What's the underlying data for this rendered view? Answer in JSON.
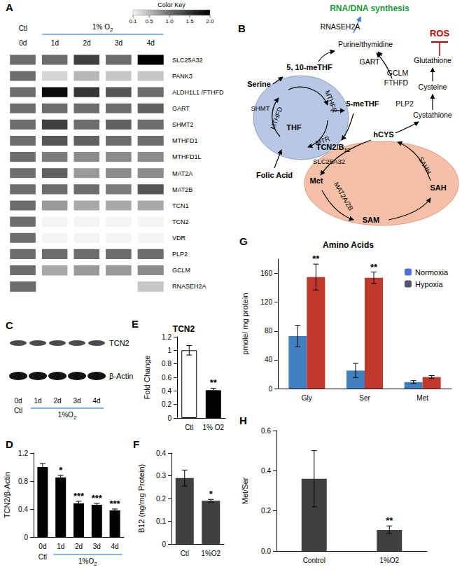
{
  "panel_labels": [
    "A",
    "B",
    "C",
    "D",
    "E",
    "F",
    "G",
    "H"
  ],
  "chart_data": [
    {
      "type": "heatmap",
      "x": [
        "0d",
        "1d",
        "2d",
        "3d",
        "4d"
      ],
      "y": [
        "SLC25A32",
        "PANK3",
        "ALDH1L1 /FTHFD",
        "GART",
        "SHMT2",
        "MTHFD1",
        "MTHFD1L",
        "MAT2A",
        "MAT2B",
        "TCN1",
        "TCN2",
        "VDR",
        "PLP2",
        "GCLM",
        "RNASEH2A"
      ],
      "cells": [
        [
          1.0,
          1.0,
          1.4,
          1.0,
          2.0
        ],
        [
          1.0,
          0.3,
          0.5,
          0.4,
          0.4
        ],
        [
          1.0,
          1.9,
          1.5,
          1.2,
          1.0
        ],
        [
          1.0,
          1.0,
          1.0,
          1.0,
          1.1
        ],
        [
          1.0,
          1.4,
          1.0,
          1.1,
          1.0
        ],
        [
          1.0,
          1.2,
          1.1,
          1.0,
          1.0
        ],
        [
          1.0,
          0.9,
          0.8,
          0.8,
          0.8
        ],
        [
          1.0,
          1.1,
          0.7,
          0.8,
          0.8
        ],
        [
          1.0,
          1.0,
          1.0,
          0.9,
          1.2
        ],
        [
          1.0,
          0.7,
          0.6,
          0.6,
          0.6
        ],
        [
          1.0,
          0.1,
          0.1,
          0.1,
          0.1
        ],
        [
          1.0,
          0.1,
          0.1,
          0.1,
          0.1
        ],
        [
          1.0,
          1.0,
          1.0,
          1.0,
          1.0
        ],
        [
          1.0,
          0.6,
          0.7,
          0.7,
          0.8
        ],
        [
          1.0,
          null,
          null,
          null,
          0.4
        ]
      ],
      "colorbar": {
        "title": "Color Key",
        "range": [
          0.1,
          2.0
        ],
        "ticks": [
          0.1,
          0.5,
          {
            "value": 1,
            "label": "1.0"
          },
          1.5,
          {
            "value": 2,
            "label": "2.0"
          }
        ]
      },
      "annotations": [
        "Ctl",
        "1% O2"
      ]
    },
    {
      "type": "bar",
      "ylabel": "TCN2/β-Actin",
      "categories": [
        "0d",
        "1d",
        "2d",
        "3d",
        "4d"
      ],
      "values": [
        1.0,
        0.85,
        0.48,
        0.46,
        0.38
      ],
      "errors": [
        0.05,
        0.03,
        0.03,
        0.02,
        0.02
      ],
      "significance": [
        null,
        "*",
        "***",
        "***",
        "***"
      ],
      "color": "#000000",
      "ylim": [
        0,
        1.2
      ],
      "yticks": [
        0,
        0.4,
        0.8,
        1.2
      ],
      "grid": false,
      "annotations": [
        "Ctl",
        "1%O2"
      ]
    },
    {
      "type": "bar",
      "title": "TCN2",
      "ylabel": "Fold Change",
      "categories": [
        "Ctl",
        "1% O2"
      ],
      "values": [
        1.0,
        0.41
      ],
      "errors": [
        0.07,
        0.03
      ],
      "significance": [
        null,
        "**"
      ],
      "colors": [
        "#ffffff",
        "#000000"
      ],
      "ylim": [
        0,
        1.2
      ],
      "yticks": [
        0,
        0.2,
        0.4,
        0.6,
        0.8,
        1,
        1.2
      ],
      "grid": false
    },
    {
      "type": "bar",
      "ylabel": "B12 (ng/mg Protein)",
      "categories": [
        "Ctl",
        "1%O2"
      ],
      "values": [
        0.29,
        0.19
      ],
      "errors": [
        0.035,
        0.006
      ],
      "significance": [
        null,
        "*"
      ],
      "color": "#404040",
      "ylim": [
        0,
        0.4
      ],
      "yticks": [
        0,
        0.1,
        0.2,
        0.3,
        0.4
      ],
      "grid": false
    },
    {
      "type": "bar",
      "title": "Amino Acids",
      "ylabel": "pmole/ mg protein",
      "categories": [
        "Gly",
        "Ser",
        "Met"
      ],
      "series": [
        {
          "name": "Normoxia",
          "color": "#3f7fbf",
          "values": [
            73,
            25,
            9
          ],
          "errors": [
            15,
            10,
            2
          ]
        },
        {
          "name": "Hypoxia",
          "color": "#c0392b",
          "values": [
            155,
            154,
            16
          ],
          "errors": [
            18,
            8,
            2
          ],
          "significance": [
            "**",
            "**",
            null
          ]
        }
      ],
      "ylim": [
        0,
        180
      ],
      "yticks": [
        0,
        40,
        80,
        120,
        160
      ],
      "grid": false,
      "legend": "upper right"
    },
    {
      "type": "bar",
      "ylabel": "Met/Ser",
      "categories": [
        "Control",
        "1%O2"
      ],
      "values": [
        0.36,
        0.105
      ],
      "errors": [
        0.14,
        0.02
      ],
      "significance": [
        null,
        "**"
      ],
      "color": "#404040",
      "ylim": [
        0,
        0.6
      ],
      "yticks": [
        {
          "value": 0,
          "label": "0.0"
        },
        0.2,
        0.4,
        0.6
      ],
      "grid": false
    }
  ],
  "diagram": {
    "labels": [
      "RNA/DNA synthesis",
      "RNASEH2A",
      "Purine/thymidine",
      "GART",
      "FTHFD",
      "ROS",
      "Glutathione",
      "GCLM",
      "Cysteine",
      "PLP2",
      "Cystathione",
      "Serine",
      "5, 10-meTHF",
      "SHMT",
      "MTHFD",
      "MTHFR",
      "THF",
      "MTR",
      "5-meTHF",
      "SLC25A32",
      "Folic Acid",
      "TCN2/B12",
      "hCYS",
      "Met",
      "MAT2A/2B",
      "SAM",
      "SAH",
      "SAHH"
    ]
  },
  "blot": {
    "bands": [
      "TCN2",
      "β-Actin"
    ],
    "lanes": [
      "0d",
      "1d",
      "2d",
      "3d",
      "4d"
    ],
    "groups": [
      "Ctl",
      "1%O2"
    ]
  }
}
